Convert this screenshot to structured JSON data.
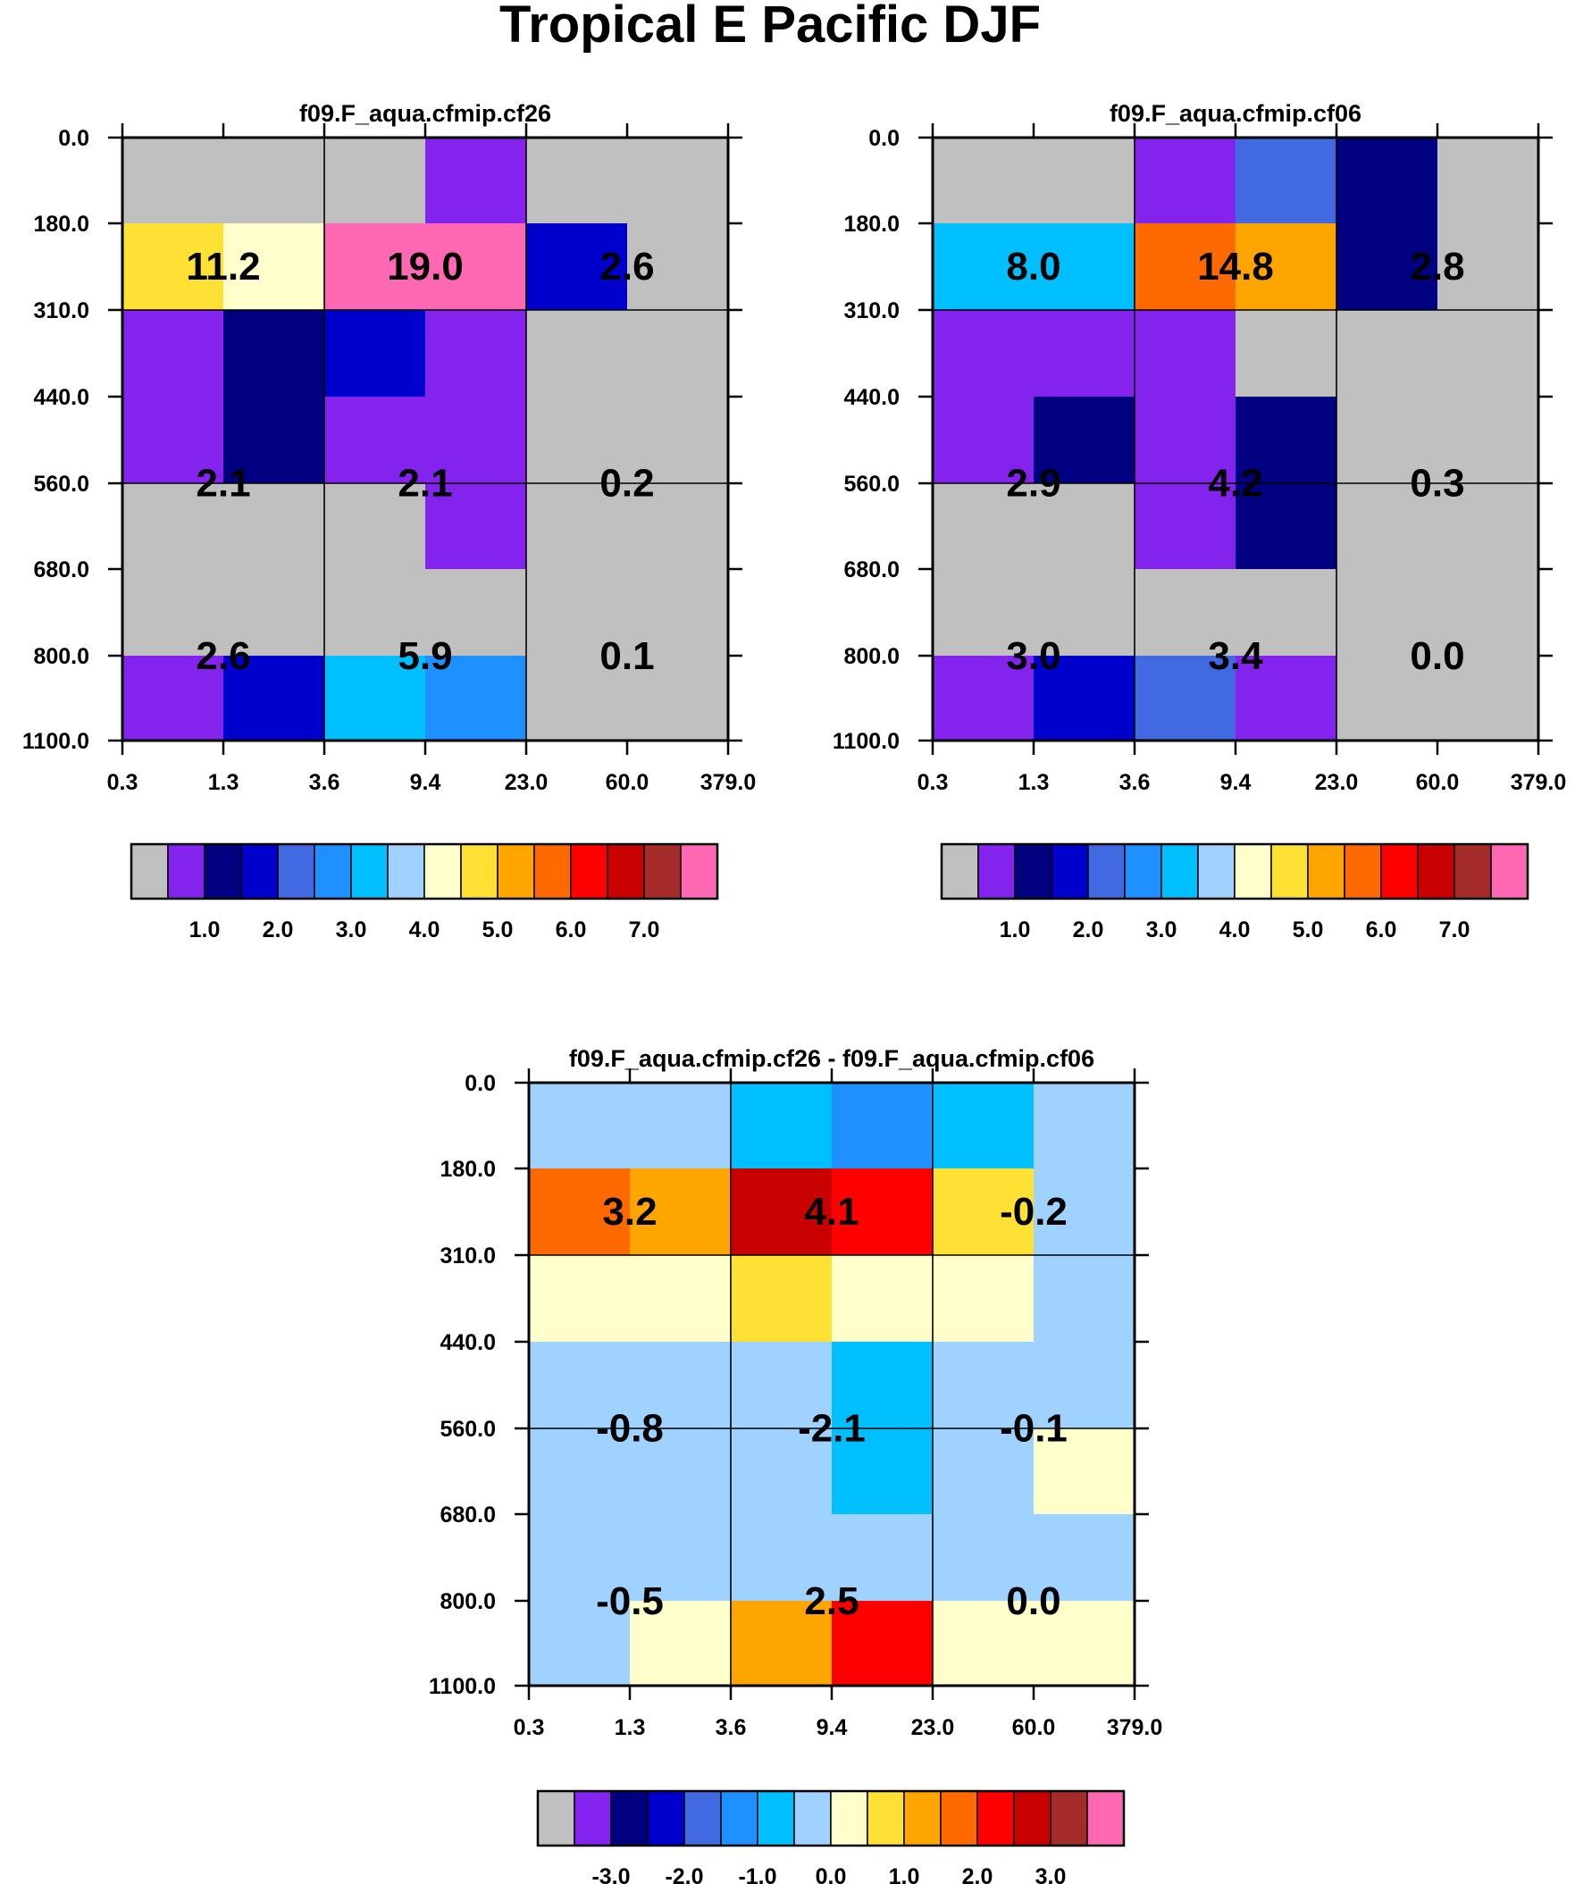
{
  "title": "Tropical E Pacific DJF",
  "colors": {
    "palette": [
      "#c0c0c0",
      "#8422ee",
      "#000080",
      "#0000cd",
      "#4169e1",
      "#1e90ff",
      "#00bfff",
      "#a0d2ff",
      "#ffffcc",
      "#ffe135",
      "#ffa500",
      "#ff6a00",
      "#ff0000",
      "#c80000",
      "#a52a2a",
      "#ff69b4"
    ],
    "grid": "#000000"
  },
  "chart_data": [
    {
      "type": "heatmap",
      "title": "f09.F_aqua.cfmip.cf26",
      "x_tick_labels": [
        "0.3",
        "1.3",
        "3.6",
        "9.4",
        "23.0",
        "60.0",
        "379.0"
      ],
      "y_tick_labels": [
        "0.0",
        "180.0",
        "310.0",
        "440.0",
        "560.0",
        "680.0",
        "800.0",
        "1100.0"
      ],
      "cell_colors": [
        [
          0,
          0,
          0,
          1,
          0,
          0
        ],
        [
          9,
          8,
          15,
          15,
          3,
          0
        ],
        [
          1,
          2,
          3,
          1,
          0,
          0
        ],
        [
          1,
          2,
          1,
          1,
          0,
          0
        ],
        [
          0,
          0,
          0,
          1,
          0,
          0
        ],
        [
          0,
          0,
          0,
          0,
          0,
          0
        ],
        [
          1,
          3,
          6,
          5,
          0,
          0
        ]
      ],
      "group_values": [
        [
          "11.2",
          "19.0",
          "2.6"
        ],
        [
          "2.1",
          "2.1",
          "0.2"
        ],
        [
          "2.6",
          "5.9",
          "0.1"
        ]
      ],
      "colorbar_labels": [
        "1.0",
        "2.0",
        "3.0",
        "4.0",
        "5.0",
        "6.0",
        "7.0"
      ]
    },
    {
      "type": "heatmap",
      "title": "f09.F_aqua.cfmip.cf06",
      "x_tick_labels": [
        "0.3",
        "1.3",
        "3.6",
        "9.4",
        "23.0",
        "60.0",
        "379.0"
      ],
      "y_tick_labels": [
        "0.0",
        "180.0",
        "310.0",
        "440.0",
        "560.0",
        "680.0",
        "800.0",
        "1100.0"
      ],
      "cell_colors": [
        [
          0,
          0,
          1,
          4,
          2,
          0
        ],
        [
          6,
          6,
          11,
          10,
          2,
          0
        ],
        [
          1,
          1,
          1,
          0,
          0,
          0
        ],
        [
          1,
          2,
          1,
          2,
          0,
          0
        ],
        [
          0,
          0,
          1,
          2,
          0,
          0
        ],
        [
          0,
          0,
          0,
          0,
          0,
          0
        ],
        [
          1,
          3,
          4,
          1,
          0,
          0
        ]
      ],
      "group_values": [
        [
          "8.0",
          "14.8",
          "2.8"
        ],
        [
          "2.9",
          "4.2",
          "0.3"
        ],
        [
          "3.0",
          "3.4",
          "0.0"
        ]
      ],
      "colorbar_labels": [
        "1.0",
        "2.0",
        "3.0",
        "4.0",
        "5.0",
        "6.0",
        "7.0"
      ]
    },
    {
      "type": "heatmap",
      "title": "f09.F_aqua.cfmip.cf26 - f09.F_aqua.cfmip.cf06",
      "x_tick_labels": [
        "0.3",
        "1.3",
        "3.6",
        "9.4",
        "23.0",
        "60.0",
        "379.0"
      ],
      "y_tick_labels": [
        "0.0",
        "180.0",
        "310.0",
        "440.0",
        "560.0",
        "680.0",
        "800.0",
        "1100.0"
      ],
      "cell_colors": [
        [
          7,
          7,
          6,
          5,
          6,
          7
        ],
        [
          11,
          10,
          13,
          12,
          9,
          7
        ],
        [
          8,
          8,
          9,
          8,
          8,
          7
        ],
        [
          7,
          7,
          7,
          6,
          7,
          7
        ],
        [
          7,
          7,
          7,
          6,
          7,
          8
        ],
        [
          7,
          7,
          7,
          7,
          7,
          7
        ],
        [
          7,
          8,
          10,
          12,
          8,
          8
        ]
      ],
      "group_values": [
        [
          "3.2",
          "4.1",
          "-0.2"
        ],
        [
          "-0.8",
          "-2.1",
          "-0.1"
        ],
        [
          "-0.5",
          "2.5",
          "0.0"
        ]
      ],
      "colorbar_labels": [
        "-3.0",
        "-2.0",
        "-1.0",
        "0.0",
        "1.0",
        "2.0",
        "3.0"
      ]
    }
  ]
}
